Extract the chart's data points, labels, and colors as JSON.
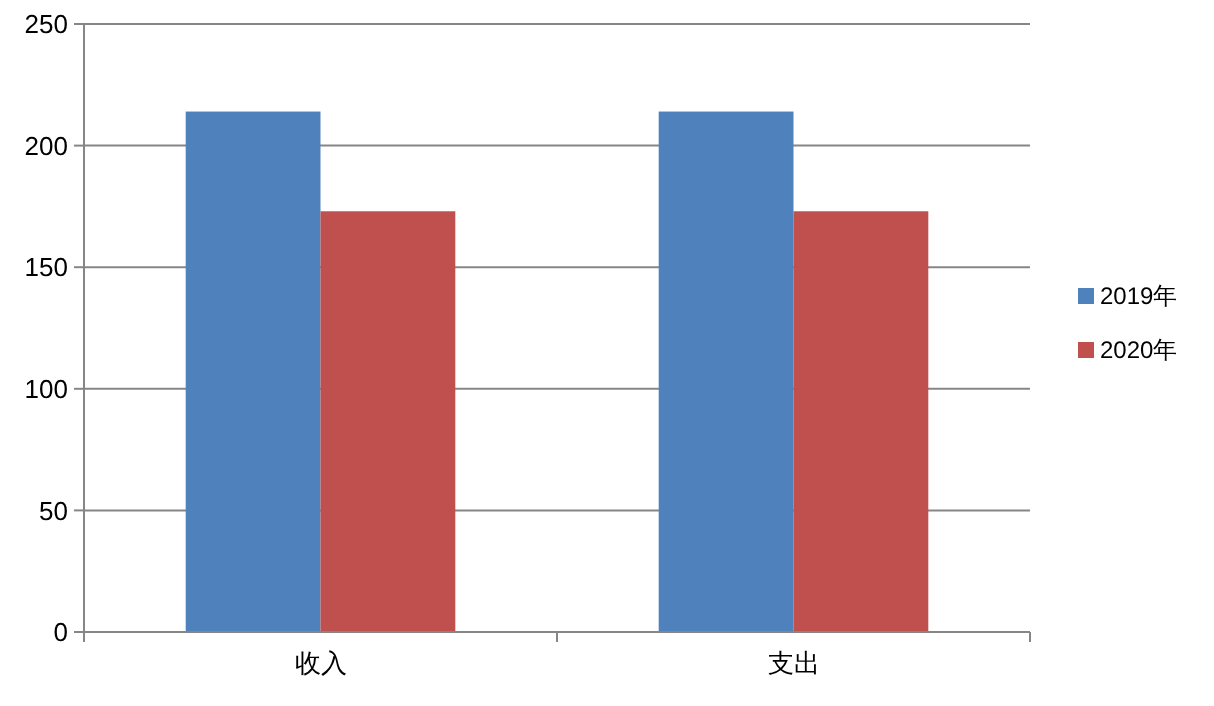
{
  "chart_data": {
    "type": "bar",
    "categories": [
      "收入",
      "支出"
    ],
    "series": [
      {
        "name": "2019年",
        "color": "#4f81bd",
        "values": [
          214,
          214
        ]
      },
      {
        "name": "2020年",
        "color": "#c0504d",
        "values": [
          173,
          173
        ]
      }
    ],
    "ylim": [
      0,
      250
    ],
    "yticks": [
      0,
      50,
      100,
      150,
      200,
      250
    ],
    "grid": "y",
    "legend": "right"
  }
}
